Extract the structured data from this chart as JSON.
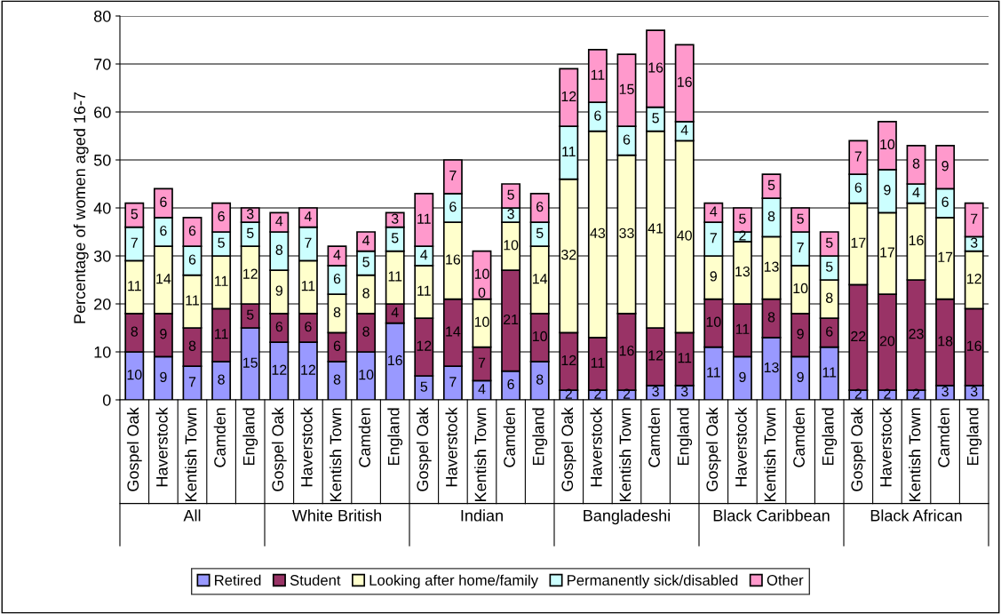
{
  "chart_data": {
    "type": "bar",
    "stacked": true,
    "ylabel": "Percentage of women aged 16-7",
    "categories": [
      "Gospel Oak",
      "Haverstock",
      "Kentish Town",
      "Camden",
      "England",
      "Gospel Oak",
      "Haverstock",
      "Kentish Town",
      "Camden",
      "England",
      "Gospel Oak",
      "Haverstock",
      "Kentish Town",
      "Camden",
      "England",
      "Gospel Oak",
      "Haverstock",
      "Kentish Town",
      "Camden",
      "England",
      "Gospel Oak",
      "Haverstock",
      "Kentish Town",
      "Camden",
      "England",
      "Gospel Oak",
      "Haverstock",
      "Kentish Town",
      "Camden",
      "England"
    ],
    "annotations": [
      "All",
      "White British",
      "Indian",
      "Bangladeshi",
      "Black Caribbean",
      "Black African"
    ],
    "series": [
      {
        "name": "Retired",
        "color": "#9999ff",
        "values": [
          10,
          9,
          7,
          8,
          15,
          12,
          12,
          8,
          10,
          16,
          5,
          7,
          4,
          6,
          8,
          2,
          2,
          2,
          3,
          3,
          11,
          9,
          13,
          9,
          11,
          2,
          2,
          2,
          3,
          3
        ]
      },
      {
        "name": "Student",
        "color": "#993366",
        "values": [
          8,
          9,
          8,
          11,
          5,
          6,
          6,
          6,
          8,
          4,
          12,
          14,
          7,
          21,
          10,
          12,
          11,
          16,
          12,
          11,
          10,
          11,
          8,
          9,
          6,
          22,
          20,
          23,
          18,
          16
        ]
      },
      {
        "name": "Looking after home/family",
        "color": "#ffffcc",
        "values": [
          11,
          14,
          11,
          11,
          12,
          9,
          11,
          8,
          8,
          11,
          11,
          16,
          10,
          10,
          14,
          32,
          43,
          33,
          41,
          40,
          9,
          13,
          13,
          10,
          8,
          17,
          17,
          16,
          17,
          12
        ]
      },
      {
        "name": "Permanently sick/disabled",
        "color": "#ccffff",
        "values": [
          7,
          6,
          6,
          5,
          5,
          8,
          7,
          6,
          5,
          5,
          4,
          6,
          0,
          3,
          5,
          11,
          6,
          6,
          5,
          4,
          7,
          2,
          8,
          7,
          5,
          6,
          9,
          4,
          6,
          3
        ]
      },
      {
        "name": "Other",
        "color": "#ff99cc",
        "values": [
          5,
          6,
          6,
          6,
          3,
          4,
          4,
          4,
          4,
          3,
          11,
          7,
          10,
          5,
          6,
          12,
          11,
          15,
          16,
          16,
          4,
          5,
          5,
          5,
          5,
          7,
          10,
          8,
          9,
          7
        ]
      }
    ],
    "ylim": [
      0,
      80
    ],
    "yticks": [
      0,
      10,
      20,
      30,
      40,
      50,
      60,
      70,
      80
    ],
    "grid": "y",
    "legend": "bottom",
    "data_labels": true
  }
}
